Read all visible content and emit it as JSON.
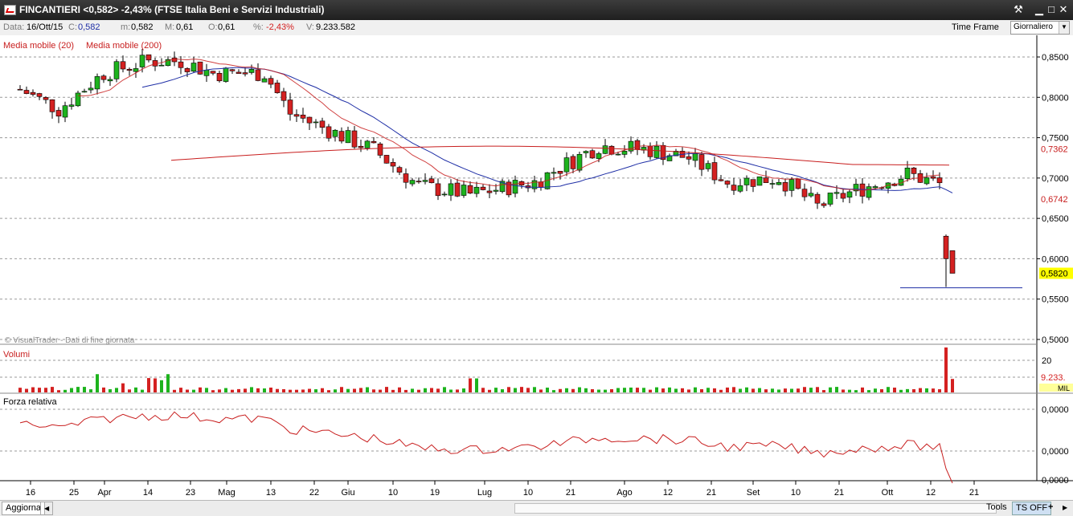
{
  "window": {
    "title": "FINCANTIERI <0,582> -2,43%  (FTSE Italia Beni e Servizi Industriali)"
  },
  "info": {
    "date_label": "Data:",
    "date": "16/Ott/15",
    "close_label": "C:",
    "close": "0,582",
    "min_label": "m:",
    "min": "0,582",
    "max_label": "M:",
    "max": "0,61",
    "open_label": "O:",
    "open": "0,61",
    "pct_label": "%:",
    "pct": "-2,43%",
    "vol_label": "V:",
    "vol": "9.233.582",
    "timeframe_label": "Time Frame",
    "timeframe_value": "Giornaliero"
  },
  "status": {
    "aggiorna": "Aggiorna",
    "tools": "Tools",
    "tsoff": "TS OFF",
    "plus": "+"
  },
  "colors": {
    "up": "#1db31d",
    "down": "#d42121",
    "ma20": "#1f2fa6",
    "ma200": "#c81e1e",
    "rsi": "#c81e1e",
    "last_label": "#ffff00"
  },
  "chart_data": {
    "type": "candlestick",
    "price": {
      "ylim": [
        0.5,
        0.86
      ],
      "ticks": [
        "0,8500",
        "0,8000",
        "0,7500",
        "0,7000",
        "0,6500",
        "0,6000",
        "0,5500",
        "0,5000"
      ],
      "tick_values": [
        0.85,
        0.8,
        0.75,
        0.7,
        0.65,
        0.6,
        0.55,
        0.5
      ],
      "series": [
        {
          "name": "Media mobile (20)",
          "last": "0,6742"
        },
        {
          "name": "Media mobile (200)",
          "last": "0,7362"
        }
      ],
      "last_price_label": "0,5820",
      "watermark": "© VisualTrader - Dati di fine giornata",
      "candles_count": 146,
      "notable": {
        "gap_open": 0.628,
        "gap_low": 0.565,
        "last_close": 0.582,
        "support_line": 0.564
      }
    },
    "volume": {
      "title": "Volumi",
      "ticks": [
        "20",
        "9.233."
      ],
      "unit": "MIL"
    },
    "rsi": {
      "title": "Forza relativa",
      "ticks": [
        "0,0000",
        "0,0000",
        "0,0000"
      ]
    },
    "x_ticks": [
      "16",
      "25",
      "Apr",
      "14",
      "23",
      "Mag",
      "13",
      "22",
      "Giu",
      "10",
      "19",
      "Lug",
      "10",
      "21",
      "Ago",
      "12",
      "21",
      "Set",
      "10",
      "21",
      "Ott",
      "12",
      "21"
    ]
  }
}
